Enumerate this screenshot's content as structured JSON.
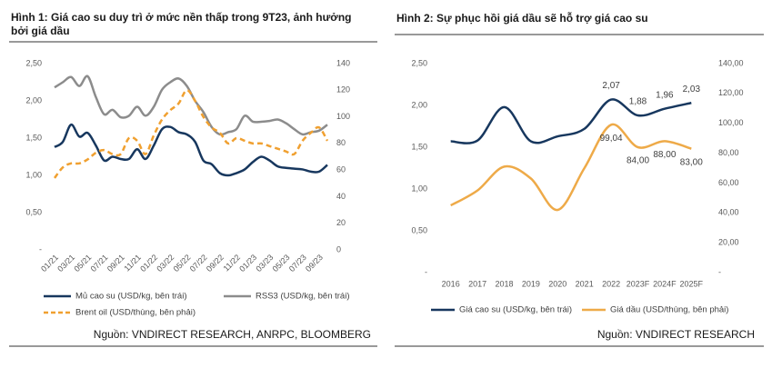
{
  "chart_data": [
    {
      "type": "line",
      "title": "Hình 1: Giá cao su duy trì ở mức nền thấp trong 9T23, ảnh hưởng bởi giá dầu",
      "categories": [
        "01/21",
        null,
        "03/21",
        null,
        "05/21",
        null,
        "07/21",
        null,
        "09/21",
        null,
        "11/21",
        null,
        "01/22",
        null,
        "03/22",
        null,
        "05/22",
        null,
        "07/22",
        null,
        "09/22",
        null,
        "11/22",
        null,
        "01/23",
        null,
        "03/23",
        null,
        "05/23",
        null,
        "07/23",
        null,
        "09/23",
        null
      ],
      "series": [
        {
          "name": "Mủ cao su (USD/kg, bên trái)",
          "color": "#17375e",
          "values": [
            1.38,
            1.45,
            1.68,
            1.52,
            1.57,
            1.4,
            1.2,
            1.25,
            1.22,
            1.22,
            1.35,
            1.22,
            1.4,
            1.62,
            1.65,
            1.58,
            1.55,
            1.45,
            1.2,
            1.15,
            1.03,
            1.0,
            1.03,
            1.08,
            1.18,
            1.25,
            1.2,
            1.12,
            1.1,
            1.09,
            1.08,
            1.05,
            1.05,
            1.14
          ]
        },
        {
          "name": "RSS3 (USD/kg, bên trái)",
          "color": "#8c8c8c",
          "values": [
            2.18,
            2.25,
            2.32,
            2.2,
            2.33,
            2.05,
            1.82,
            1.88,
            1.78,
            1.8,
            1.92,
            1.8,
            1.92,
            2.15,
            2.25,
            2.3,
            2.2,
            2.0,
            1.85,
            1.65,
            1.55,
            1.58,
            1.62,
            1.8,
            1.72,
            1.72,
            1.73,
            1.75,
            1.7,
            1.62,
            1.55,
            1.58,
            1.6,
            1.68
          ]
        },
        {
          "name": "Brent oil (USD/thùng, bên phải)",
          "color": "#f0a030",
          "dashed": true,
          "axis": "y2",
          "values": [
            54,
            62,
            65,
            65,
            68,
            73,
            75,
            72,
            72,
            84,
            82,
            72,
            86,
            98,
            105,
            110,
            120,
            112,
            100,
            92,
            88,
            80,
            84,
            82,
            80,
            80,
            78,
            76,
            74,
            72,
            82,
            88,
            92,
            82
          ]
        }
      ],
      "ylim": [
        0,
        2.5
      ],
      "yticks": [
        {
          "value": 0,
          "label": "-"
        },
        {
          "value": 0.5,
          "label": "0,50"
        },
        {
          "value": 1,
          "label": "1,00"
        },
        {
          "value": 1.5,
          "label": "1,50"
        },
        {
          "value": 2,
          "label": "2,00"
        },
        {
          "value": 2.5,
          "label": "2,50"
        }
      ],
      "y2lim": [
        0,
        140
      ],
      "y2ticks": [
        0,
        20,
        40,
        60,
        80,
        100,
        120,
        140
      ],
      "source": "Nguồn: VNDIRECT RESEARCH, ANRPC, BLOOMBERG"
    },
    {
      "type": "line",
      "title": "Hình 2: Sự phục hồi giá dầu sẽ hỗ trợ giá cao su",
      "categories": [
        "2016",
        "2017",
        "2018",
        "2019",
        "2020",
        "2021",
        "2022",
        "2023F",
        "2024F",
        "2025F"
      ],
      "series": [
        {
          "name": "Giá cao su (USD/kg, bên trái)",
          "color": "#17375e",
          "values": [
            1.57,
            1.58,
            1.98,
            1.57,
            1.63,
            1.72,
            2.07,
            1.88,
            1.96,
            2.03
          ],
          "value_labels": [
            null,
            null,
            null,
            null,
            null,
            null,
            "2,07",
            "1,88",
            "1,96",
            "2,03"
          ]
        },
        {
          "name": "Giá dầu (USD/thùng, bên phải)",
          "color": "#eeaa48",
          "axis": "y2",
          "values": [
            45,
            55,
            71,
            63,
            42,
            70,
            99.04,
            84,
            88,
            83
          ],
          "value_labels": [
            null,
            null,
            null,
            null,
            null,
            null,
            "99,04",
            "84,00",
            "88,00",
            "83,00"
          ]
        }
      ],
      "ylim": [
        0,
        2.5
      ],
      "yticks": [
        {
          "value": 0,
          "label": "-"
        },
        {
          "value": 0.5,
          "label": "0,50"
        },
        {
          "value": 1,
          "label": "1,00"
        },
        {
          "value": 1.5,
          "label": "1,50"
        },
        {
          "value": 2,
          "label": "2,00"
        },
        {
          "value": 2.5,
          "label": "2,50"
        }
      ],
      "y2lim": [
        0,
        140
      ],
      "y2ticks": [
        {
          "value": 0,
          "label": "-"
        },
        {
          "value": 20,
          "label": "20,00"
        },
        {
          "value": 40,
          "label": "40,00"
        },
        {
          "value": 60,
          "label": "60,00"
        },
        {
          "value": 80,
          "label": "80,00"
        },
        {
          "value": 100,
          "label": "100,00"
        },
        {
          "value": 120,
          "label": "120,00"
        },
        {
          "value": 140,
          "label": "140,00"
        }
      ],
      "source": "Nguồn: VNDIRECT RESEARCH"
    }
  ]
}
